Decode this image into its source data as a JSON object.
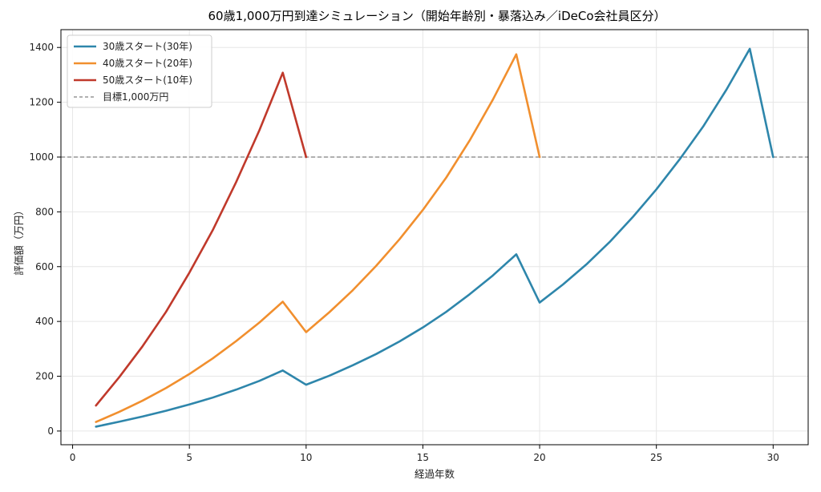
{
  "chart_data": {
    "type": "line",
    "title": "60歳1,000万円到達シミュレーション（開始年齢別・暴落込み／iDeCo会社員区分）",
    "xlabel": "経過年数",
    "ylabel": "評価額（万円）",
    "xlim": [
      -0.5,
      31.5
    ],
    "ylim": [
      -50,
      1465
    ],
    "xticks": [
      0,
      5,
      10,
      15,
      20,
      25,
      30
    ],
    "yticks": [
      0,
      200,
      400,
      600,
      800,
      1000,
      1200,
      1400
    ],
    "grid": true,
    "legend_position": "top-left",
    "series": [
      {
        "name": "30歳スタート(30年)",
        "color": "#2e86ab",
        "x": [
          1,
          2,
          3,
          4,
          5,
          6,
          7,
          8,
          9,
          10,
          11,
          12,
          13,
          14,
          15,
          16,
          17,
          18,
          19,
          20,
          21,
          22,
          23,
          24,
          25,
          26,
          27,
          28,
          29,
          30
        ],
        "values": [
          16,
          34,
          53,
          74,
          97,
          122,
          151,
          183,
          221,
          169,
          202,
          240,
          281,
          327,
          378,
          435,
          499,
          568,
          645,
          469,
          535,
          608,
          690,
          782,
          882,
          992,
          1111,
          1246,
          1395,
          1000
        ]
      },
      {
        "name": "40歳スタート(20年)",
        "color": "#f18f2e",
        "x": [
          1,
          2,
          3,
          4,
          5,
          6,
          7,
          8,
          9,
          10,
          11,
          12,
          13,
          14,
          15,
          16,
          17,
          18,
          19,
          20
        ],
        "values": [
          33,
          70,
          111,
          157,
          208,
          265,
          328,
          396,
          472,
          361,
          434,
          514,
          603,
          700,
          807,
          925,
          1060,
          1210,
          1375,
          1000
        ]
      },
      {
        "name": "50歳スタート(10年)",
        "color": "#c0392b",
        "x": [
          1,
          2,
          3,
          4,
          5,
          6,
          7,
          8,
          9,
          10
        ],
        "values": [
          93,
          197,
          310,
          435,
          578,
          733,
          908,
          1098,
          1308,
          1000
        ]
      }
    ],
    "reference_line": {
      "name": "目標1,000万円",
      "y": 1000,
      "color": "#808080"
    }
  }
}
